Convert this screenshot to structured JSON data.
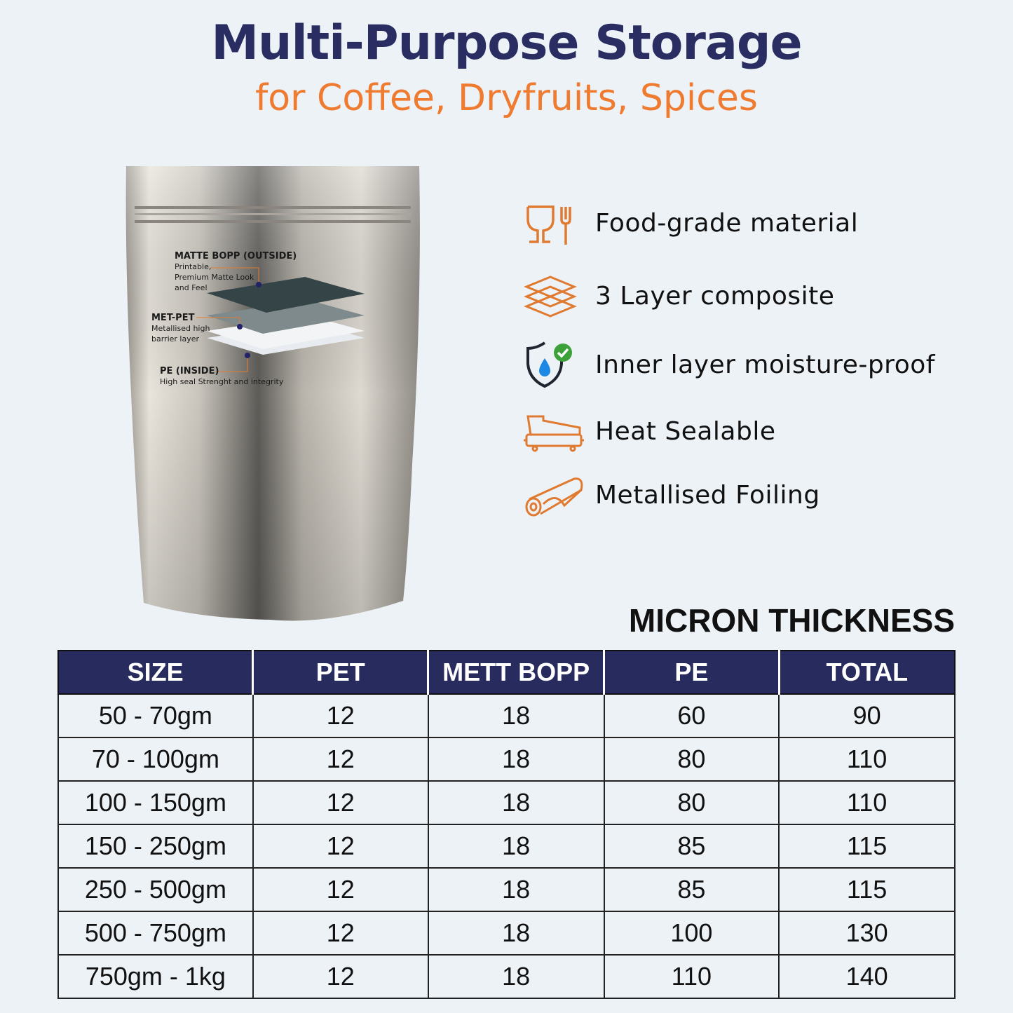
{
  "header": {
    "title": "Multi-Purpose Storage",
    "subtitle": "for Coffee, Dryfruits, Spices"
  },
  "pouch": {
    "layers": [
      {
        "name": "MATTE BOPP (OUTSIDE)",
        "desc": [
          "Printable,",
          "Premium Matte Look",
          "and Feel"
        ]
      },
      {
        "name": "MET-PET",
        "desc": [
          "Metallised high",
          "barrier layer"
        ]
      },
      {
        "name": "PE (INSIDE)",
        "desc": [
          "High seal Strenght and integrity"
        ]
      }
    ]
  },
  "features": [
    {
      "icon": "food-grade-icon",
      "label": "Food-grade material"
    },
    {
      "icon": "layers-icon",
      "label": "3 Layer composite"
    },
    {
      "icon": "moisture-shield-icon",
      "label": "Inner layer moisture-proof"
    },
    {
      "icon": "heat-sealer-icon",
      "label": "Heat Sealable"
    },
    {
      "icon": "foil-roll-icon",
      "label": "Metallised Foiling"
    }
  ],
  "table": {
    "title": "MICRON THICKNESS",
    "headers": [
      "SIZE",
      "PET",
      "METT BOPP",
      "PE",
      "TOTAL"
    ],
    "rows": [
      [
        "50 - 70gm",
        "12",
        "18",
        "60",
        "90"
      ],
      [
        "70 - 100gm",
        "12",
        "18",
        "80",
        "110"
      ],
      [
        "100 - 150gm",
        "12",
        "18",
        "80",
        "110"
      ],
      [
        "150 - 250gm",
        "12",
        "18",
        "85",
        "115"
      ],
      [
        "250 - 500gm",
        "12",
        "18",
        "85",
        "115"
      ],
      [
        "500 - 750gm",
        "12",
        "18",
        "100",
        "130"
      ],
      [
        "750gm - 1kg",
        "12",
        "18",
        "110",
        "140"
      ]
    ]
  },
  "colors": {
    "title": "#2a2d62",
    "accent": "#ee7b30",
    "table_header": "#272b5e",
    "background": "#edf2f7"
  }
}
